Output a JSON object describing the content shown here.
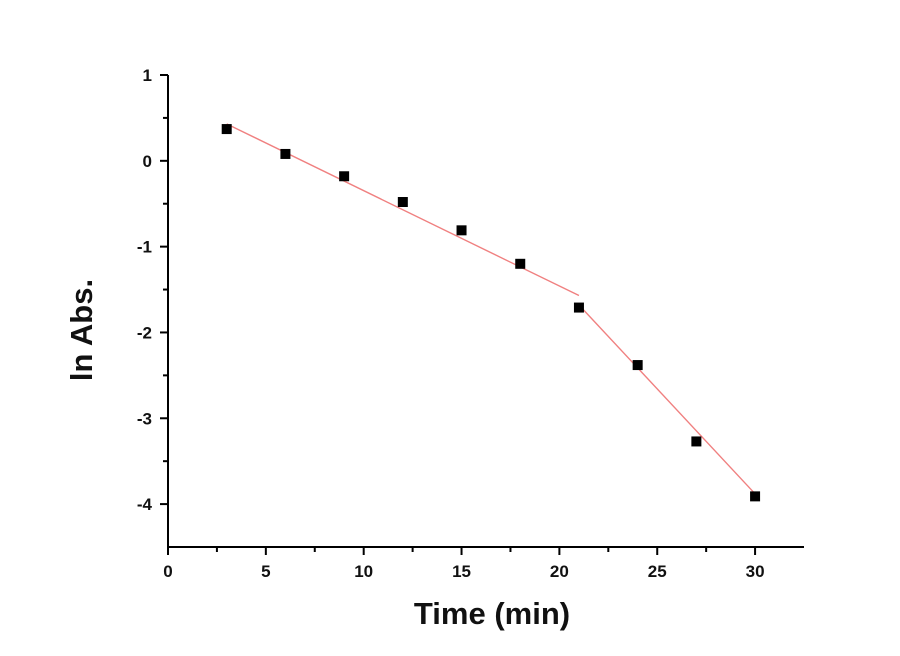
{
  "chart_data": {
    "type": "scatter",
    "title": "",
    "xlabel": "Time (min)",
    "ylabel": "ln Abs.",
    "xlim": [
      0,
      32.5
    ],
    "ylim": [
      -4.5,
      1
    ],
    "xticks": [
      0,
      5,
      10,
      15,
      20,
      25,
      30
    ],
    "yticks": [
      1,
      0,
      -1,
      -2,
      -3,
      -4
    ],
    "xtick_labels": [
      "0",
      "5",
      "10",
      "15",
      "20",
      "25",
      "30"
    ],
    "ytick_labels": [
      "1",
      "0",
      "-1",
      "-2",
      "-3",
      "-4"
    ],
    "grid": false,
    "legend": "none",
    "series": [
      {
        "marker": "square",
        "color": "#000000",
        "points": [
          {
            "x": 3,
            "y": 0.37
          },
          {
            "x": 6,
            "y": 0.08
          },
          {
            "x": 9,
            "y": -0.18
          },
          {
            "x": 12,
            "y": -0.48
          },
          {
            "x": 15,
            "y": -0.81
          },
          {
            "x": 18,
            "y": -1.2
          },
          {
            "x": 21,
            "y": -1.71
          },
          {
            "x": 24,
            "y": -2.38
          },
          {
            "x": 27,
            "y": -3.27
          },
          {
            "x": 30,
            "y": -3.91
          }
        ]
      }
    ],
    "fit_lines": [
      {
        "color": "#f08080",
        "x": [
          3,
          21
        ],
        "y": [
          0.43,
          -1.57
        ]
      },
      {
        "color": "#f08080",
        "x": [
          21,
          30
        ],
        "y": [
          -1.68,
          -3.88
        ]
      }
    ]
  }
}
